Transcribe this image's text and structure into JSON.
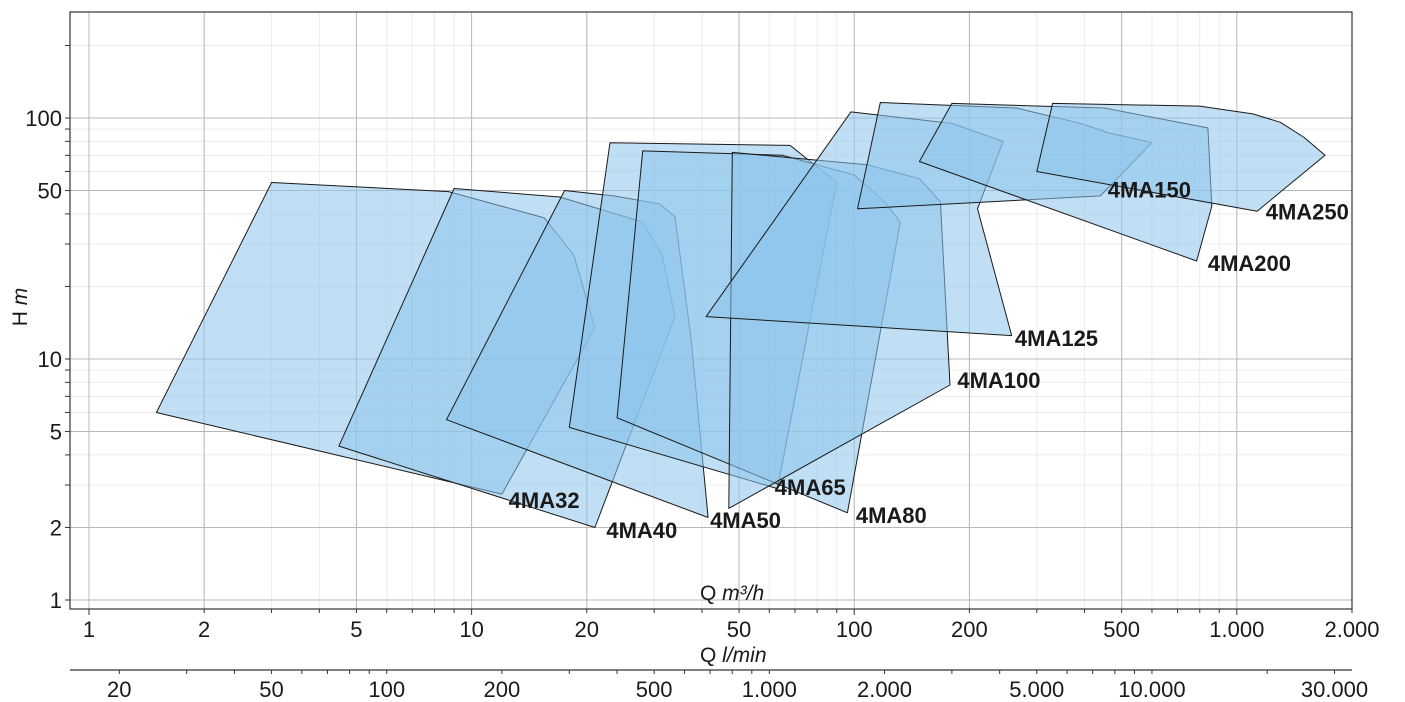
{
  "chart_data": {
    "type": "area",
    "x_axis": {
      "scale": "log",
      "range": [
        1,
        2000
      ],
      "ticks": [
        [
          1,
          "1"
        ],
        [
          2,
          "2"
        ],
        [
          5,
          "5"
        ],
        [
          10,
          "10"
        ],
        [
          20,
          "20"
        ],
        [
          50,
          "50"
        ],
        [
          100,
          "100"
        ],
        [
          200,
          "200"
        ],
        [
          500,
          "500"
        ],
        [
          1000,
          "1.000"
        ],
        [
          2000,
          "2.000"
        ]
      ]
    },
    "secondary_x_axis": {
      "scale": "log",
      "ticks": [
        [
          20,
          "20"
        ],
        [
          50,
          "50"
        ],
        [
          100,
          "100"
        ],
        [
          200,
          "200"
        ],
        [
          500,
          "500"
        ],
        [
          1000,
          "1.000"
        ],
        [
          2000,
          "2.000"
        ],
        [
          5000,
          "5.000"
        ],
        [
          10000,
          "10.000"
        ],
        [
          30000,
          "30.000"
        ]
      ]
    },
    "y_axis": {
      "scale": "log",
      "range": [
        1,
        220
      ],
      "ticks": [
        [
          1,
          "1"
        ],
        [
          2,
          "2"
        ],
        [
          5,
          "5"
        ],
        [
          10,
          "10"
        ],
        [
          50,
          "50"
        ],
        [
          100,
          "100"
        ]
      ]
    },
    "grid": true,
    "fill_color": "#8cc4eb",
    "fill_opacity": 0.55,
    "edge_color": "#1a1a1a",
    "regions": [
      {
        "name": "4MA32",
        "label_at": [
          12.5,
          2.6
        ],
        "points": [
          [
            1.5,
            6.0
          ],
          [
            3.0,
            54
          ],
          [
            8.7,
            49.5
          ],
          [
            15.5,
            38.5
          ],
          [
            18.5,
            27
          ],
          [
            21,
            13.5
          ],
          [
            12,
            2.75
          ]
        ]
      },
      {
        "name": "4MA40",
        "label_at": [
          22.5,
          1.95
        ],
        "points": [
          [
            4.5,
            4.35
          ],
          [
            9.0,
            51
          ],
          [
            17,
            47
          ],
          [
            28,
            37
          ],
          [
            31.5,
            27
          ],
          [
            34,
            15
          ],
          [
            21,
            2.0
          ]
        ]
      },
      {
        "name": "4MA50",
        "label_at": [
          42,
          2.15
        ],
        "points": [
          [
            8.6,
            5.6
          ],
          [
            17.5,
            50
          ],
          [
            23.5,
            47.5
          ],
          [
            31,
            44
          ],
          [
            34,
            39
          ],
          [
            37.5,
            12
          ],
          [
            41.5,
            2.2
          ]
        ]
      },
      {
        "name": "4MA65",
        "label_at": [
          62,
          2.95
        ],
        "points": [
          [
            18,
            5.2
          ],
          [
            23,
            79
          ],
          [
            68,
            77
          ],
          [
            90,
            54
          ],
          [
            63,
            2.9
          ]
        ]
      },
      {
        "name": "4MA80",
        "label_at": [
          101,
          2.25
        ],
        "points": [
          [
            24,
            5.7
          ],
          [
            28,
            73
          ],
          [
            65,
            70
          ],
          [
            100,
            58
          ],
          [
            120,
            45
          ],
          [
            132,
            37
          ],
          [
            96,
            2.3
          ]
        ]
      },
      {
        "name": "4MA100",
        "label_at": [
          186,
          8.2
        ],
        "points": [
          [
            47,
            2.4
          ],
          [
            48,
            72
          ],
          [
            108,
            64
          ],
          [
            148,
            56
          ],
          [
            168,
            45
          ],
          [
            178,
            7.8
          ]
        ]
      },
      {
        "name": "4MA125",
        "label_at": [
          263,
          12.2
        ],
        "points": [
          [
            41,
            15
          ],
          [
            98,
            106
          ],
          [
            180,
            95
          ],
          [
            245,
            80
          ],
          [
            210,
            42
          ],
          [
            258,
            12.5
          ]
        ]
      },
      {
        "name": "4MA150",
        "label_at": [
          460,
          50.5
        ],
        "points": [
          [
            102,
            42
          ],
          [
            117,
            116
          ],
          [
            265,
            110
          ],
          [
            390,
            95
          ],
          [
            460,
            87
          ],
          [
            600,
            79
          ],
          [
            440,
            47.5
          ]
        ]
      },
      {
        "name": "4MA200",
        "label_at": [
          840,
          25
        ],
        "points": [
          [
            148,
            66
          ],
          [
            180,
            115
          ],
          [
            450,
            110
          ],
          [
            840,
            91
          ],
          [
            860,
            43
          ],
          [
            785,
            25.5
          ]
        ]
      },
      {
        "name": "4MA250",
        "label_at": [
          1190,
          41
        ],
        "points": [
          [
            300,
            60
          ],
          [
            330,
            115
          ],
          [
            800,
            112
          ],
          [
            1100,
            104
          ],
          [
            1300,
            96
          ],
          [
            1500,
            83
          ],
          [
            1700,
            70
          ],
          [
            1130,
            41
          ]
        ]
      }
    ]
  },
  "axes": {
    "x_label_prefix": "Q ",
    "x_label_unit": "m³/h",
    "x2_label_prefix": "Q ",
    "x2_label_unit": "l/min",
    "y_label_prefix": "H ",
    "y_label_unit": "m"
  }
}
